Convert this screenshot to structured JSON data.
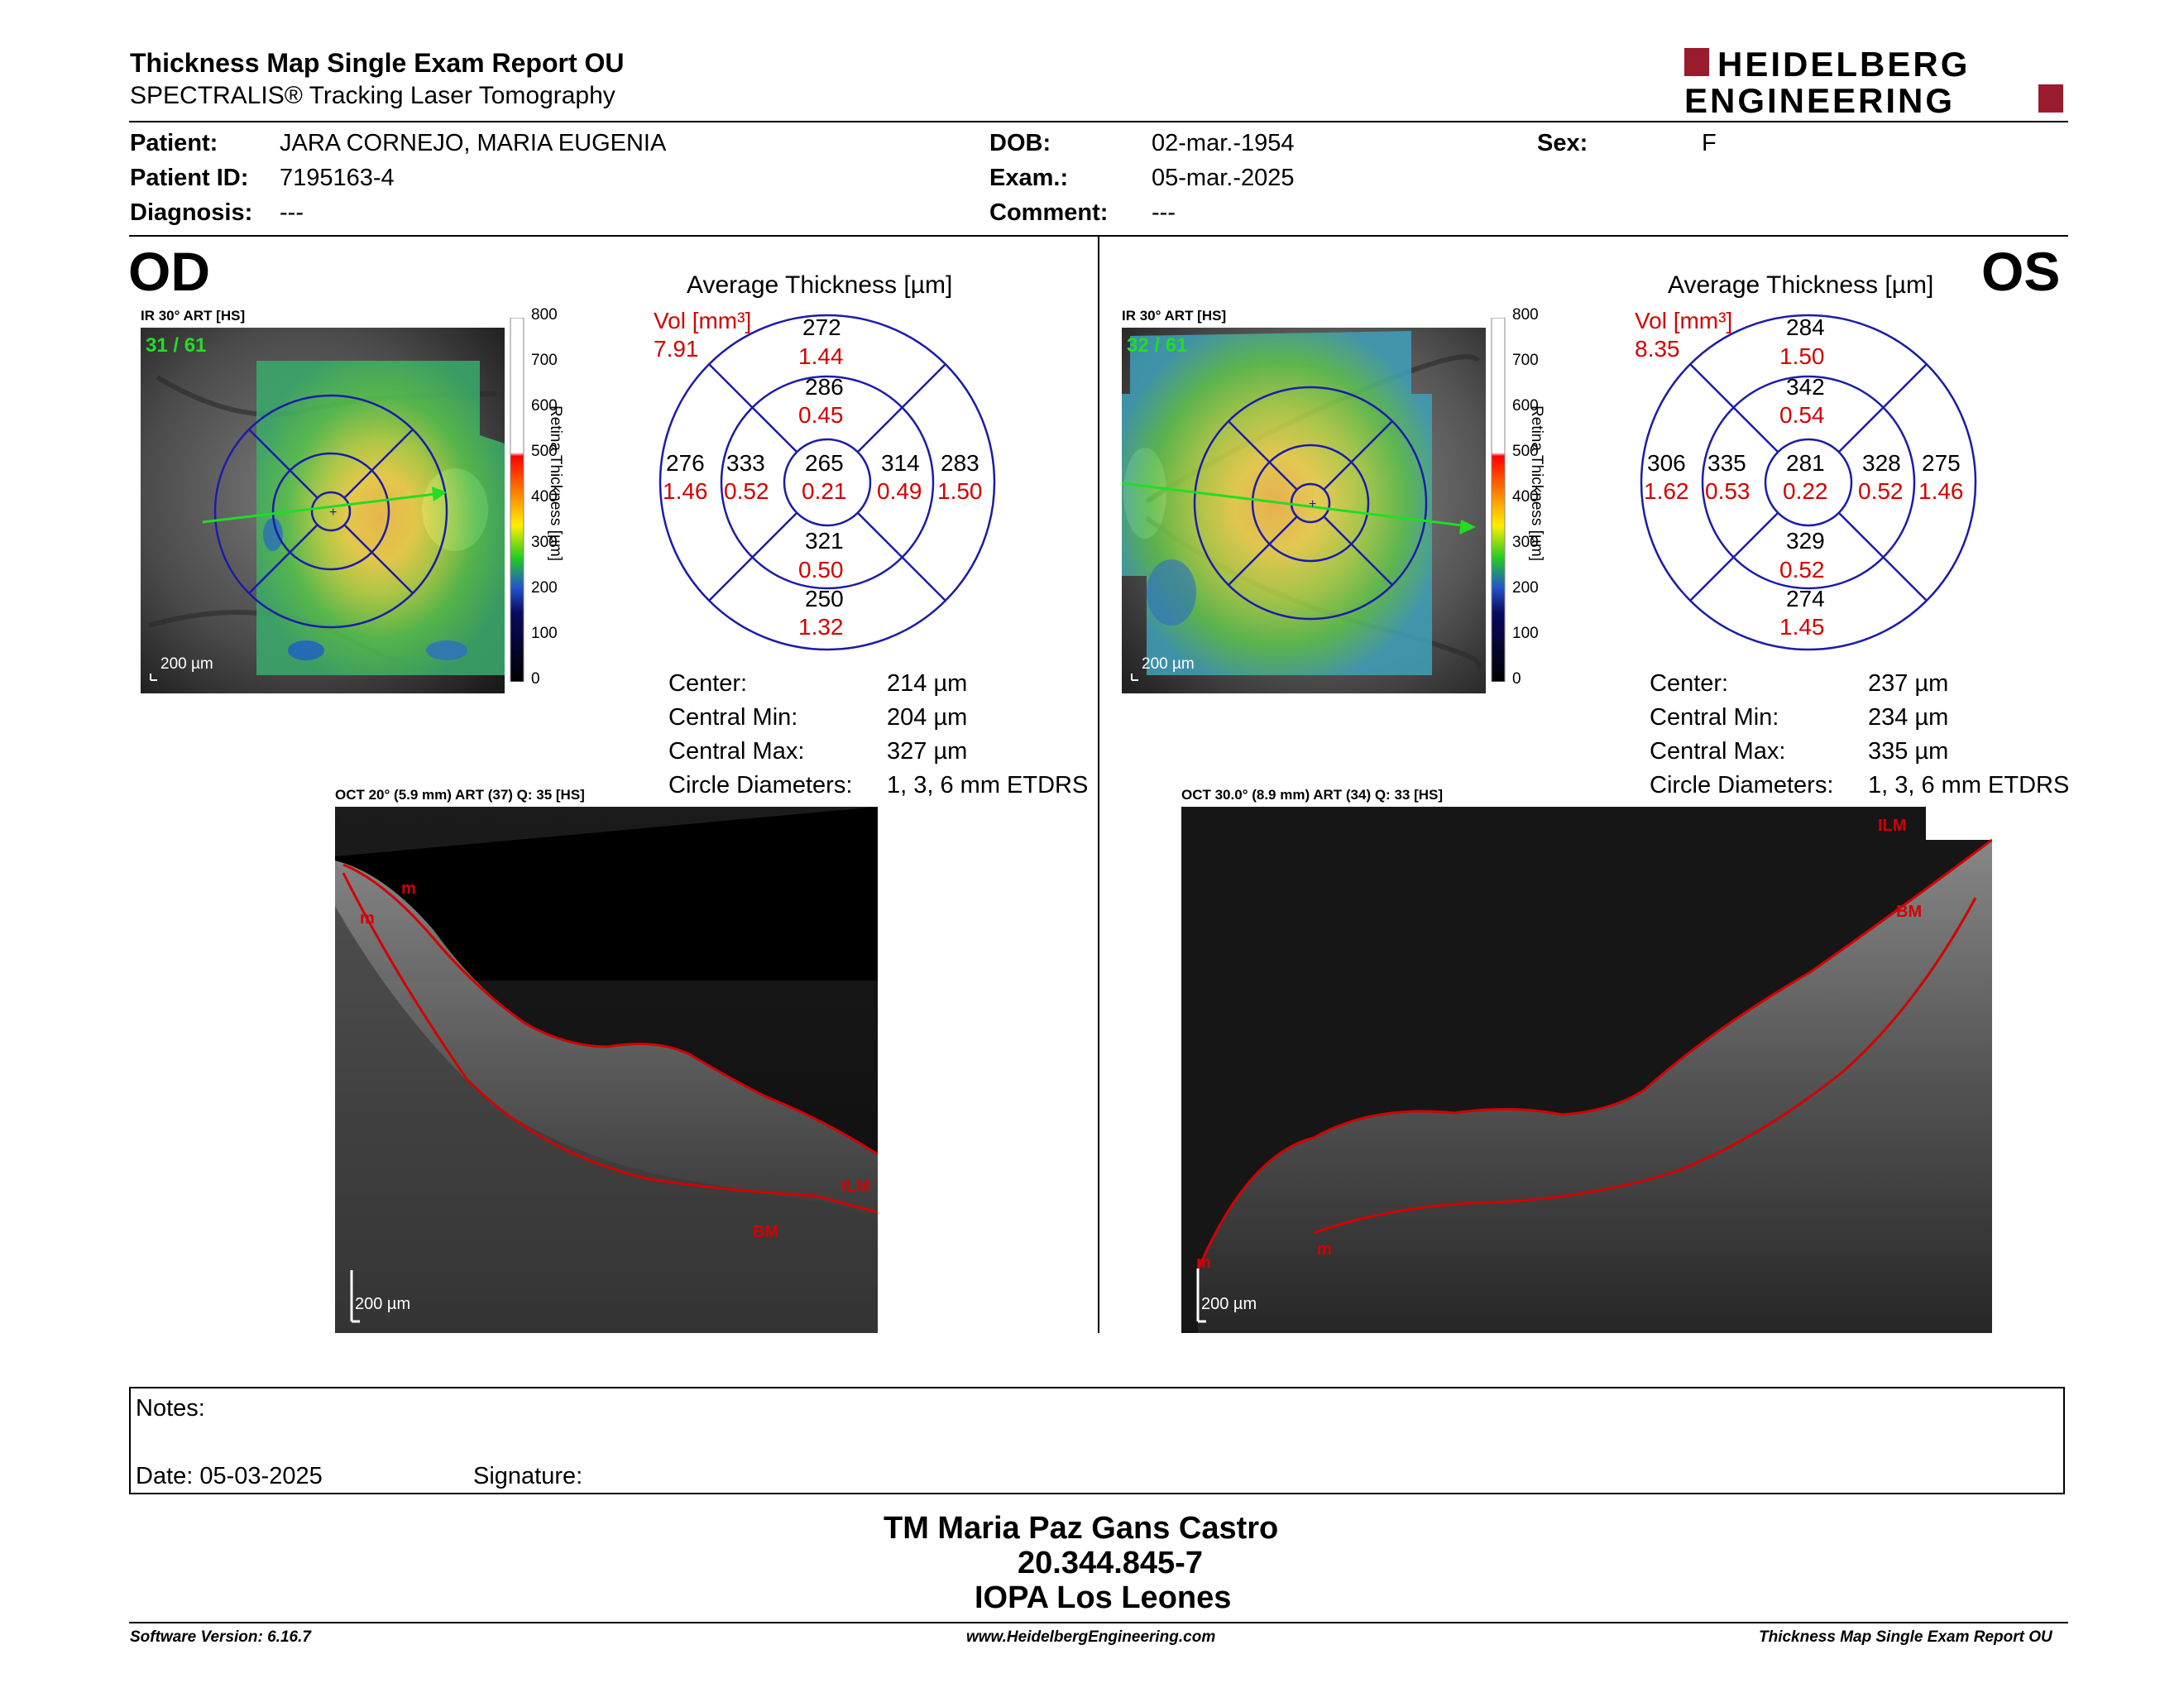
{
  "header": {
    "title": "Thickness Map Single Exam Report OU",
    "subtitle": "SPECTRALIS® Tracking Laser Tomography",
    "logo_line1": "HEIDELBERG",
    "logo_line2": "ENGINEERING"
  },
  "patient": {
    "patient_label": "Patient:",
    "patient_value": "JARA CORNEJO, MARIA EUGENIA",
    "id_label": "Patient ID:",
    "id_value": "7195163-4",
    "diagnosis_label": "Diagnosis:",
    "diagnosis_value": "---",
    "dob_label": "DOB:",
    "dob_value": "02-mar.-1954",
    "exam_label": "Exam.:",
    "exam_value": "05-mar.-2025",
    "comment_label": "Comment:",
    "comment_value": "---",
    "sex_label": "Sex:",
    "sex_value": "F"
  },
  "colors": {
    "accent_red": "#d40000",
    "circle_blue": "#1c1ca8",
    "logo_red": "#9a1b2e"
  },
  "scale_ticks": [
    "800",
    "700",
    "600",
    "500",
    "400",
    "300",
    "200",
    "100",
    "0"
  ],
  "scale_label": "Retina Thickness [µm]",
  "od": {
    "eye": "OD",
    "ir_label": "IR 30° ART [HS]",
    "ir_counter": "31 / 61",
    "scale_bar": "200 µm",
    "avg_title": "Average Thickness [µm]",
    "vol_label": "Vol [mm³]",
    "vol_value": "7.91",
    "sectors": {
      "outer_top": [
        "272",
        "1.44"
      ],
      "inner_top": [
        "286",
        "0.45"
      ],
      "outer_left": [
        "276",
        "1.46"
      ],
      "inner_left": [
        "333",
        "0.52"
      ],
      "center": [
        "265",
        "0.21"
      ],
      "inner_right": [
        "314",
        "0.49"
      ],
      "outer_right": [
        "283",
        "1.50"
      ],
      "inner_bottom": [
        "321",
        "0.50"
      ],
      "outer_bottom": [
        "250",
        "1.32"
      ]
    },
    "stats": [
      {
        "label": "Center:",
        "value": "214 µm"
      },
      {
        "label": "Central Min:",
        "value": "204 µm"
      },
      {
        "label": "Central Max:",
        "value": "327 µm"
      },
      {
        "label": "Circle Diameters:",
        "value": "1, 3, 6 mm ETDRS"
      }
    ],
    "oct_label": "OCT 20° (5.9 mm) ART (37) Q: 35 [HS]",
    "oct_scale_bar": "200 µm",
    "oct_tags": {
      "ilm": "ILM",
      "bm": "BM",
      "m": "m"
    }
  },
  "os": {
    "eye": "OS",
    "ir_label": "IR 30° ART [HS]",
    "ir_counter": "32 / 61",
    "scale_bar": "200 µm",
    "avg_title": "Average Thickness [µm]",
    "vol_label": "Vol [mm³]",
    "vol_value": "8.35",
    "sectors": {
      "outer_top": [
        "284",
        "1.50"
      ],
      "inner_top": [
        "342",
        "0.54"
      ],
      "outer_left": [
        "306",
        "1.62"
      ],
      "inner_left": [
        "335",
        "0.53"
      ],
      "center": [
        "281",
        "0.22"
      ],
      "inner_right": [
        "328",
        "0.52"
      ],
      "outer_right": [
        "275",
        "1.46"
      ],
      "inner_bottom": [
        "329",
        "0.52"
      ],
      "outer_bottom": [
        "274",
        "1.45"
      ]
    },
    "stats": [
      {
        "label": "Center:",
        "value": "237 µm"
      },
      {
        "label": "Central Min:",
        "value": "234 µm"
      },
      {
        "label": "Central Max:",
        "value": "335 µm"
      },
      {
        "label": "Circle Diameters:",
        "value": "1, 3, 6 mm ETDRS"
      }
    ],
    "oct_label": "OCT 30.0° (8.9 mm) ART (34) Q: 33 [HS]",
    "oct_scale_bar": "200 µm",
    "oct_tags": {
      "ilm": "ILM",
      "bm": "BM",
      "m": "m"
    }
  },
  "notes": {
    "notes_label": "Notes:",
    "date_label": "Date: 05-03-2025",
    "signature_label": "Signature:"
  },
  "stamp": {
    "line1": "TM Maria Paz Gans Castro",
    "line2": "20.344.845-7",
    "line3": "IOPA Los Leones"
  },
  "footer": {
    "software": "Software Version: 6.16.7",
    "website": "www.HeidelbergEngineering.com",
    "report": "Thickness Map Single Exam Report OU"
  }
}
